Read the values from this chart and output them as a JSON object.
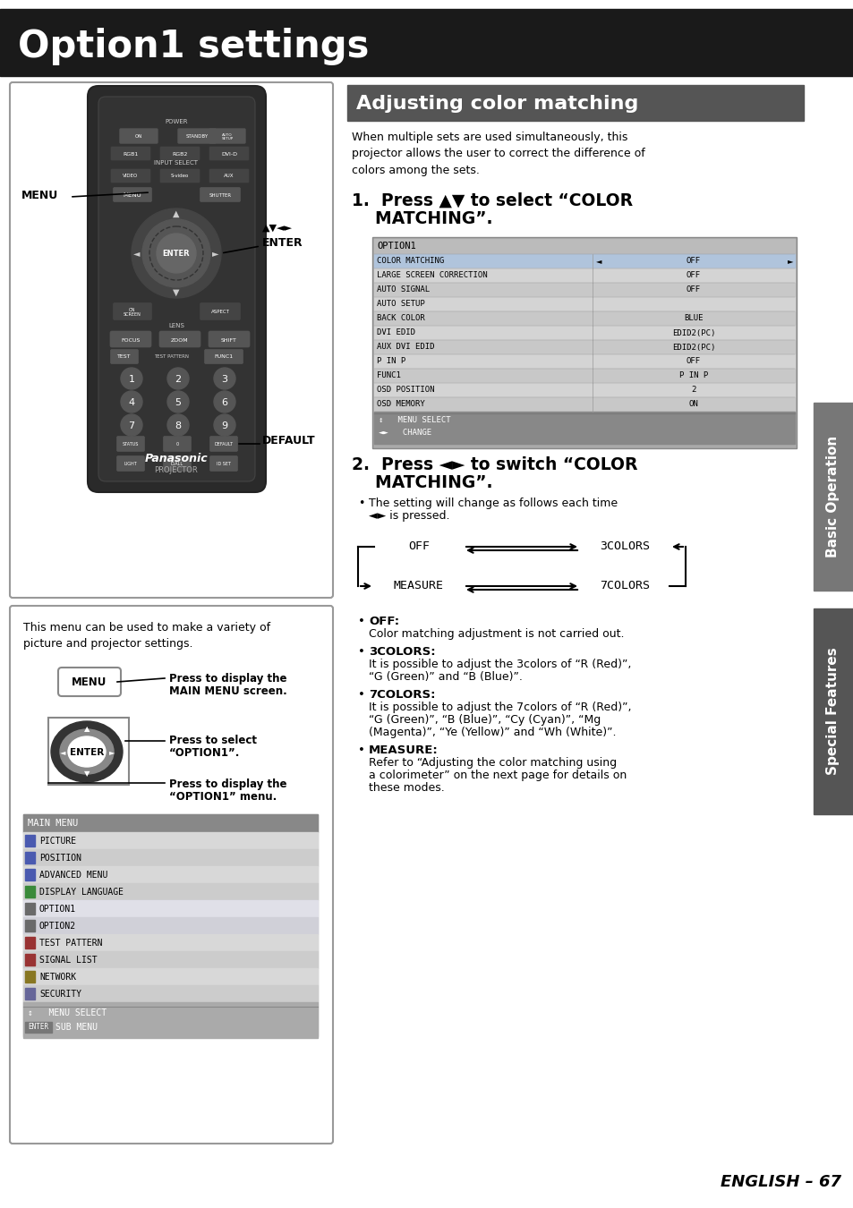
{
  "page_bg": "#ffffff",
  "header_bg": "#1a1a1a",
  "header_text": "Option1 settings",
  "header_text_color": "#ffffff",
  "section_header_bg": "#555555",
  "section_header_text": "Adjusting color matching",
  "section_header_text_color": "#ffffff",
  "intro_text": "When multiple sets are used simultaneously, this\nprojector allows the user to correct the difference of\ncolors among the sets.",
  "step1_title_1": "1.  Press ▲▼ to select “COLOR",
  "step1_title_2": "    MATCHING”.",
  "step2_title_1": "2.  Press ◄► to switch “COLOR",
  "step2_title_2": "    MATCHING”.",
  "step2_bullet": "•  The setting will change as follows each time\n   ◄► is pressed.",
  "menu_title": "OPTION1",
  "menu_rows": [
    {
      "label": "COLOR MATCHING",
      "value": "OFF",
      "highlight": true,
      "has_arrows": true
    },
    {
      "label": "LARGE SCREEN CORRECTION",
      "value": "OFF",
      "highlight": false
    },
    {
      "label": "AUTO SIGNAL",
      "value": "OFF",
      "highlight": false
    },
    {
      "label": "AUTO SETUP",
      "value": "",
      "highlight": false
    },
    {
      "label": "BACK COLOR",
      "value": "BLUE",
      "highlight": false
    },
    {
      "label": "DVI EDID",
      "value": "EDID2(PC)",
      "highlight": false
    },
    {
      "label": "AUX DVI EDID",
      "value": "EDID2(PC)",
      "highlight": false
    },
    {
      "label": "P IN P",
      "value": "OFF",
      "highlight": false
    },
    {
      "label": "FUNC1",
      "value": "P IN P",
      "highlight": false
    },
    {
      "label": "OSD POSITION",
      "value": "2",
      "highlight": false
    },
    {
      "label": "OSD MEMORY",
      "value": "ON",
      "highlight": false
    }
  ],
  "menu_footer": [
    "↕   MENU SELECT",
    "◄►   CHANGE"
  ],
  "bullet_items": [
    {
      "label": "OFF:",
      "text": "Color matching adjustment is not carried out."
    },
    {
      "label": "3COLORS:",
      "text": "It is possible to adjust the 3colors of “R (Red)”,\n“G (Green)” and “B (Blue)”."
    },
    {
      "label": "7COLORS:",
      "text": "It is possible to adjust the 7colors of “R (Red)”,\n“G (Green)”, “B (Blue)”, “Cy (Cyan)”, “Mg\n(Magenta)”, “Ye (Yellow)” and “Wh (White)”."
    },
    {
      "label": "MEASURE:",
      "text": "Refer to “Adjusting the color matching using\na colorimeter” on the next page for details on\nthese modes."
    }
  ],
  "sidebar_top_text": "Basic Operation",
  "sidebar_bottom_text": "Special Features",
  "footer_text": "ENGLISH – 67",
  "menu_text_note": "This menu can be used to make a variety of\npicture and projector settings.",
  "press_menu": "Press to display the\nMAIN MENU screen.",
  "press_enter_1": "Press to select",
  "press_enter_2": "“OPTION1”.",
  "press_enter_3": "Press to display the\n“OPTION1” menu.",
  "main_menu_items": [
    "PICTURE",
    "POSITION",
    "ADVANCED MENU",
    "DISPLAY LANGUAGE",
    "OPTION1",
    "OPTION2",
    "TEST PATTERN",
    "SIGNAL LIST",
    "NETWORK",
    "SECURITY"
  ],
  "main_menu_label": "MAIN MENU",
  "main_menu_footer": [
    "↕   MENU SELECT",
    "ENTER  SUB MENU"
  ],
  "row_highlight_colors": [
    "#c8d8f0",
    "#d8d8d8",
    "#c8c8c8",
    "#c8c8c8",
    "#d8d8d8",
    "#c8c8c8",
    "#d8d8d8",
    "#c8c8c8",
    "#d8d8d8",
    "#c8c8c8",
    "#d8d8d8"
  ],
  "mm_row_colors": [
    "#d8d8d8",
    "#cccccc",
    "#d8d8d8",
    "#cccccc",
    "#e8e8e8",
    "#d8d8d8",
    "#cccccc",
    "#d8d8d8",
    "#cccccc",
    "#d8d8d8"
  ]
}
